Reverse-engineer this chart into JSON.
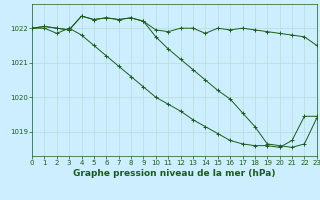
{
  "title": "Graphe pression niveau de la mer (hPa)",
  "bg_color": "#cceeff",
  "grid_color": "#b8ddd8",
  "line_color": "#1a5c1a",
  "hours": [
    0,
    1,
    2,
    3,
    4,
    5,
    6,
    7,
    8,
    9,
    10,
    11,
    12,
    13,
    14,
    15,
    16,
    17,
    18,
    19,
    20,
    21,
    22,
    23
  ],
  "series1": [
    1022.0,
    1022.05,
    1022.0,
    1021.95,
    1022.35,
    1022.25,
    1022.3,
    1022.25,
    1022.3,
    1022.2,
    1021.95,
    1021.9,
    1022.0,
    1022.0,
    1021.85,
    1022.0,
    1021.95,
    1022.0,
    1021.95,
    1021.9,
    1021.85,
    1021.8,
    1021.75,
    1021.5
  ],
  "series2": [
    1022.0,
    1022.0,
    1021.85,
    1022.0,
    1021.8,
    1021.5,
    1021.2,
    1020.9,
    1020.6,
    1020.3,
    1020.0,
    1019.8,
    1019.6,
    1019.35,
    1019.15,
    1018.95,
    1018.75,
    1018.65,
    1018.6,
    1018.6,
    1018.55,
    1018.75,
    1019.45,
    1019.45
  ],
  "series3": [
    1022.0,
    1022.05,
    1022.0,
    1021.95,
    1022.35,
    1022.25,
    1022.3,
    1022.25,
    1022.3,
    1022.2,
    1021.75,
    1021.4,
    1021.1,
    1020.8,
    1020.5,
    1020.2,
    1019.95,
    1019.55,
    1019.15,
    1018.65,
    1018.6,
    1018.55,
    1018.65,
    1019.4
  ],
  "ylim_min": 1018.3,
  "ylim_max": 1022.7,
  "yticks": [
    1019,
    1020,
    1021,
    1022
  ],
  "title_fontsize": 6.5,
  "tick_fontsize": 5.0
}
